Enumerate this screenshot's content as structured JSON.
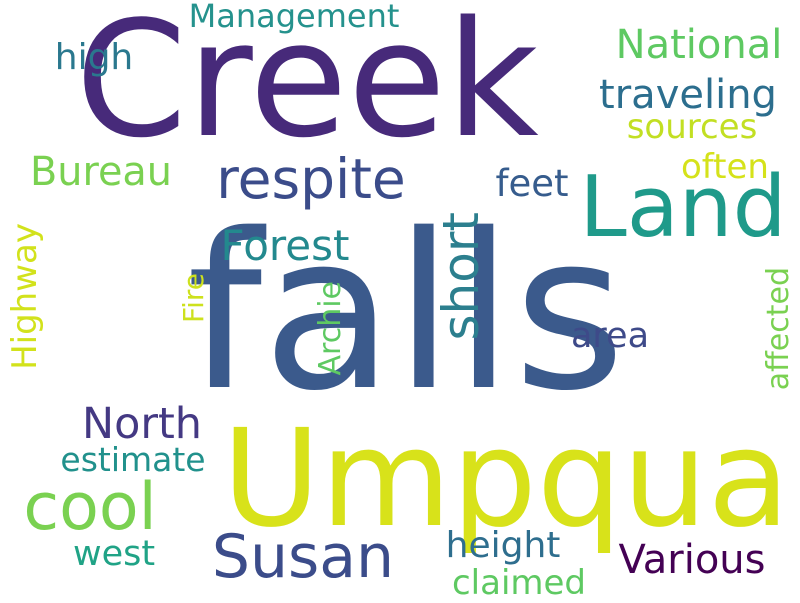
{
  "words": {
    "falls": {
      "text": "falls",
      "color": "#3b5a8c"
    },
    "creek": {
      "text": "Creek",
      "color": "#472a7a"
    },
    "umpqua": {
      "text": "Umpqua",
      "color": "#d8e21a"
    },
    "land": {
      "text": "Land",
      "color": "#1f9a8a"
    },
    "respite": {
      "text": "respite",
      "color": "#3b4c8a"
    },
    "short": {
      "text": "short",
      "color": "#2c7f8e"
    },
    "susan": {
      "text": "Susan",
      "color": "#3b4c8a"
    },
    "cool": {
      "text": "cool",
      "color": "#7ad151"
    },
    "management": {
      "text": "Management",
      "color": "#25928d"
    },
    "national": {
      "text": "National",
      "color": "#5ec962"
    },
    "high": {
      "text": "high",
      "color": "#2a788e"
    },
    "traveling": {
      "text": "traveling",
      "color": "#2c6e8e"
    },
    "sources": {
      "text": "sources",
      "color": "#c2df23"
    },
    "often": {
      "text": "often",
      "color": "#d5e21a"
    },
    "bureau": {
      "text": "Bureau",
      "color": "#7ad151"
    },
    "feet": {
      "text": "feet",
      "color": "#365c8d"
    },
    "forest": {
      "text": "Forest",
      "color": "#23898e"
    },
    "highway": {
      "text": "Highway",
      "color": "#d2e21b"
    },
    "fire": {
      "text": "Fire",
      "color": "#cde11d"
    },
    "archie": {
      "text": "Archie",
      "color": "#5ec962"
    },
    "affected": {
      "text": "affected",
      "color": "#7ad151"
    },
    "area": {
      "text": "area",
      "color": "#3e4a89"
    },
    "north": {
      "text": "North",
      "color": "#443983"
    },
    "estimate": {
      "text": "estimate",
      "color": "#21918c"
    },
    "west": {
      "text": "west",
      "color": "#20a386"
    },
    "height": {
      "text": "height",
      "color": "#2e6e8e"
    },
    "claimed": {
      "text": "claimed",
      "color": "#5ec962"
    },
    "various": {
      "text": "Various",
      "color": "#440154"
    }
  }
}
